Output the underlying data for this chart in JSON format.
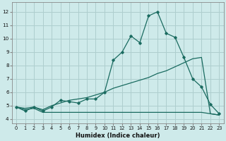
{
  "xlabel": "Humidex (Indice chaleur)",
  "bg_color": "#ceeaea",
  "grid_color": "#aecece",
  "line_color": "#1a6b60",
  "xlim": [
    -0.5,
    23.5
  ],
  "ylim": [
    3.7,
    12.7
  ],
  "xticks": [
    0,
    1,
    2,
    3,
    4,
    5,
    6,
    7,
    8,
    9,
    10,
    11,
    12,
    13,
    14,
    15,
    16,
    17,
    18,
    19,
    20,
    21,
    22,
    23
  ],
  "yticks": [
    4,
    5,
    6,
    7,
    8,
    9,
    10,
    11,
    12
  ],
  "line1_x": [
    0,
    1,
    2,
    3,
    4,
    5,
    6,
    7,
    8,
    9,
    10,
    11,
    12,
    13,
    14,
    15,
    16,
    17,
    18,
    19,
    20,
    21,
    22,
    23
  ],
  "line1_y": [
    4.9,
    4.6,
    4.9,
    4.6,
    4.9,
    5.4,
    5.3,
    5.2,
    5.5,
    5.5,
    6.0,
    8.4,
    9.0,
    10.2,
    9.7,
    11.7,
    12.0,
    10.4,
    10.1,
    8.6,
    7.0,
    6.4,
    5.1,
    4.4
  ],
  "line2_x": [
    0,
    1,
    2,
    3,
    4,
    5,
    6,
    7,
    8,
    9,
    10,
    11,
    12,
    13,
    14,
    15,
    16,
    17,
    18,
    19,
    20,
    21,
    22,
    23
  ],
  "line2_y": [
    4.9,
    4.8,
    4.9,
    4.7,
    5.0,
    5.2,
    5.4,
    5.5,
    5.6,
    5.8,
    6.0,
    6.3,
    6.5,
    6.7,
    6.9,
    7.1,
    7.4,
    7.6,
    7.9,
    8.2,
    8.5,
    8.6,
    4.4,
    4.3
  ],
  "line3_x": [
    0,
    1,
    2,
    3,
    4,
    5,
    6,
    7,
    8,
    9,
    10,
    11,
    12,
    13,
    14,
    15,
    16,
    17,
    18,
    19,
    20,
    21,
    22,
    23
  ],
  "line3_y": [
    4.9,
    4.7,
    4.8,
    4.5,
    4.5,
    4.5,
    4.5,
    4.5,
    4.5,
    4.5,
    4.5,
    4.5,
    4.5,
    4.5,
    4.5,
    4.5,
    4.5,
    4.5,
    4.5,
    4.5,
    4.5,
    4.5,
    4.4,
    4.3
  ]
}
